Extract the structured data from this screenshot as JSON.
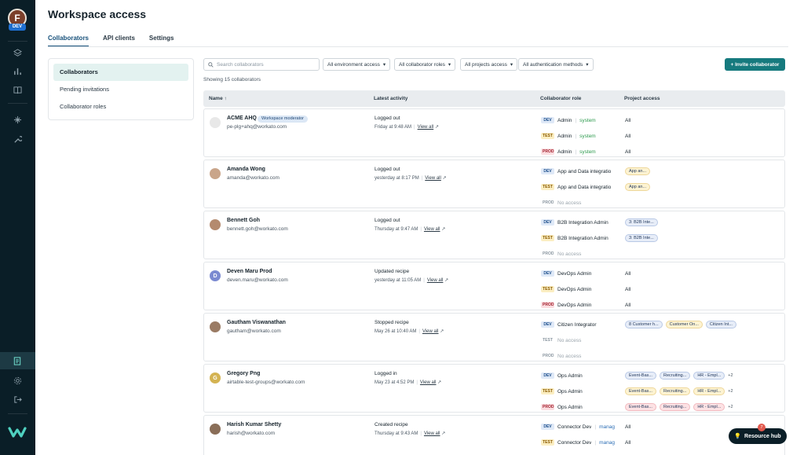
{
  "user": {
    "initial": "F",
    "env": "DEV"
  },
  "page": {
    "title": "Workspace access"
  },
  "tabs": [
    {
      "label": "Collaborators"
    },
    {
      "label": "API clients"
    },
    {
      "label": "Settings"
    }
  ],
  "side_menu": [
    {
      "label": "Collaborators"
    },
    {
      "label": "Pending invitations"
    },
    {
      "label": "Collaborator roles"
    }
  ],
  "search": {
    "placeholder": "Search collaborators"
  },
  "filters": [
    {
      "label": "All environment access"
    },
    {
      "label": "All collaborator roles"
    },
    {
      "label": "All projects access"
    },
    {
      "label": "All authentication methods"
    }
  ],
  "invite_label": "+ Invite collaborator",
  "showing": "Showing 15 collaborators",
  "columns": {
    "name": "Name",
    "activity": "Latest activity",
    "role": "Collaborator role",
    "project": "Project access"
  },
  "view_all": "View all",
  "system": "system",
  "no_access": "No access",
  "all": "All",
  "resource_hub": {
    "label": "Resource hub",
    "count": "7"
  },
  "rows": [
    {
      "name": "ACME AHQ",
      "email": "pe-plg+ahq@workato.com",
      "badge": "Workspace moderator",
      "activity": "Logged out",
      "time": "Friday at 9:48 AM",
      "roles": [
        "Admin",
        "Admin",
        "Admin"
      ],
      "projects": [
        "All",
        "All",
        "All"
      ]
    },
    {
      "name": "Amanda Wong",
      "email": "amanda@workato.com",
      "activity": "Logged out",
      "time": "yesterday at 8:17 PM",
      "roles": [
        "App and Data integratio",
        "App and Data integratio",
        "No access"
      ],
      "projects": [
        "App an...",
        "App an..."
      ]
    },
    {
      "name": "Bennett Goh",
      "email": "bennett.goh@workato.com",
      "activity": "Logged out",
      "time": "Thursday at 9:47 AM",
      "roles": [
        "B2B Integration Admin",
        "B2B Integration Admin",
        "No access"
      ],
      "projects": [
        "3: B2B Inte...",
        "3: B2B Inte..."
      ]
    },
    {
      "name": "Deven Maru Prod",
      "email": "deven.maru@workato.com",
      "initial": "D",
      "activity": "Updated recipe",
      "time": "yesterday at 11:05 AM",
      "roles": [
        "DevOps Admin",
        "DevOps Admin",
        "DevOps Admin"
      ],
      "projects": [
        "All",
        "All",
        "All"
      ]
    },
    {
      "name": "Gautham Viswanathan",
      "email": "gautham@workato.com",
      "activity": "Stopped recipe",
      "time": "May 26 at 10:40 AM",
      "roles": [
        "Citizen Integrator",
        "No access",
        "No access"
      ],
      "projects": [
        "8 Customer h...",
        "Customer On...",
        "Citizen Int..."
      ]
    },
    {
      "name": "Gregory Png",
      "email": "airtable-test-groups@workato.com",
      "initial": "G",
      "activity": "Logged in",
      "time": "May 23 at 4:52 PM",
      "roles": [
        "Ops Admin",
        "Ops Admin",
        "Ops Admin"
      ],
      "projects": [
        "Event-Bas...",
        "Recruiting...",
        "HR - Empl...",
        "+2"
      ]
    },
    {
      "name": "Harish Kumar Shetty",
      "email": "harish@workato.com",
      "activity": "Created recipe",
      "time": "Thursday at 9:43 AM",
      "roles": [
        "Connector Dev",
        "Connector Dev"
      ],
      "role_suffix": "manag",
      "projects": [
        "All",
        "All"
      ]
    }
  ],
  "env_labels": {
    "dev": "DEV",
    "test": "TEST",
    "prod": "PROD"
  },
  "colors": {
    "rail": "#0a1e27",
    "accent": "#167a7e",
    "active_tab": "#16507a"
  }
}
